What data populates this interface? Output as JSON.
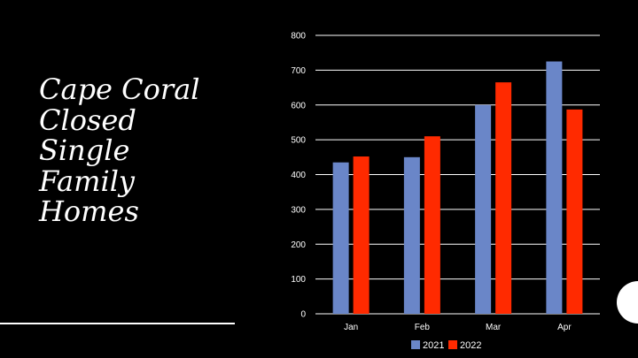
{
  "slide": {
    "title_lines": [
      "Cape Coral",
      "Closed",
      "Single",
      "Family",
      "Homes"
    ]
  },
  "chart_data": {
    "type": "bar",
    "categories": [
      "Jan",
      "Feb",
      "Mar",
      "Apr"
    ],
    "series": [
      {
        "name": "2021",
        "values": [
          435,
          450,
          600,
          725
        ],
        "color": "#6a86c8"
      },
      {
        "name": "2022",
        "values": [
          452,
          510,
          665,
          587
        ],
        "color": "#ff2a00"
      }
    ],
    "ylim": [
      0,
      800
    ],
    "yticks": [
      0,
      100,
      200,
      300,
      400,
      500,
      600,
      700,
      800
    ],
    "grid": true,
    "legend": "bottom",
    "title": "",
    "xlabel": "",
    "ylabel": ""
  },
  "colors": {
    "background": "#000000",
    "text": "#ffffff",
    "gridline": "#ffffff"
  }
}
